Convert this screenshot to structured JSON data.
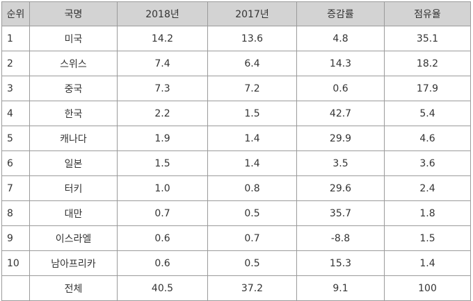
{
  "table": {
    "headers": {
      "rank": "순위",
      "country": "국명",
      "y2018": "2018년",
      "y2017": "2017년",
      "growth": "증감률",
      "share": "점유율"
    },
    "rows": [
      {
        "rank": "1",
        "country": "미국",
        "y2018": "14.2",
        "y2017": "13.6",
        "growth": "4.8",
        "share": "35.1"
      },
      {
        "rank": "2",
        "country": "스위스",
        "y2018": "7.4",
        "y2017": "6.4",
        "growth": "14.3",
        "share": "18.2"
      },
      {
        "rank": "3",
        "country": "중국",
        "y2018": "7.3",
        "y2017": "7.2",
        "growth": "0.6",
        "share": "17.9"
      },
      {
        "rank": "4",
        "country": "한국",
        "y2018": "2.2",
        "y2017": "1.5",
        "growth": "42.7",
        "share": "5.4"
      },
      {
        "rank": "5",
        "country": "캐나다",
        "y2018": "1.9",
        "y2017": "1.4",
        "growth": "29.9",
        "share": "4.6"
      },
      {
        "rank": "6",
        "country": "일본",
        "y2018": "1.5",
        "y2017": "1.4",
        "growth": "3.5",
        "share": "3.6"
      },
      {
        "rank": "7",
        "country": "터키",
        "y2018": "1.0",
        "y2017": "0.8",
        "growth": "29.6",
        "share": "2.4"
      },
      {
        "rank": "8",
        "country": "대만",
        "y2018": "0.7",
        "y2017": "0.5",
        "growth": "35.7",
        "share": "1.8"
      },
      {
        "rank": "9",
        "country": "이스라엘",
        "y2018": "0.6",
        "y2017": "0.7",
        "growth": "-8.8",
        "share": "1.5"
      },
      {
        "rank": "10",
        "country": "남아프리카",
        "y2018": "0.6",
        "y2017": "0.5",
        "growth": "15.3",
        "share": "1.4"
      }
    ],
    "total": {
      "rank": "",
      "country": "전체",
      "y2018": "40.5",
      "y2017": "37.2",
      "growth": "9.1",
      "share": "100"
    }
  }
}
